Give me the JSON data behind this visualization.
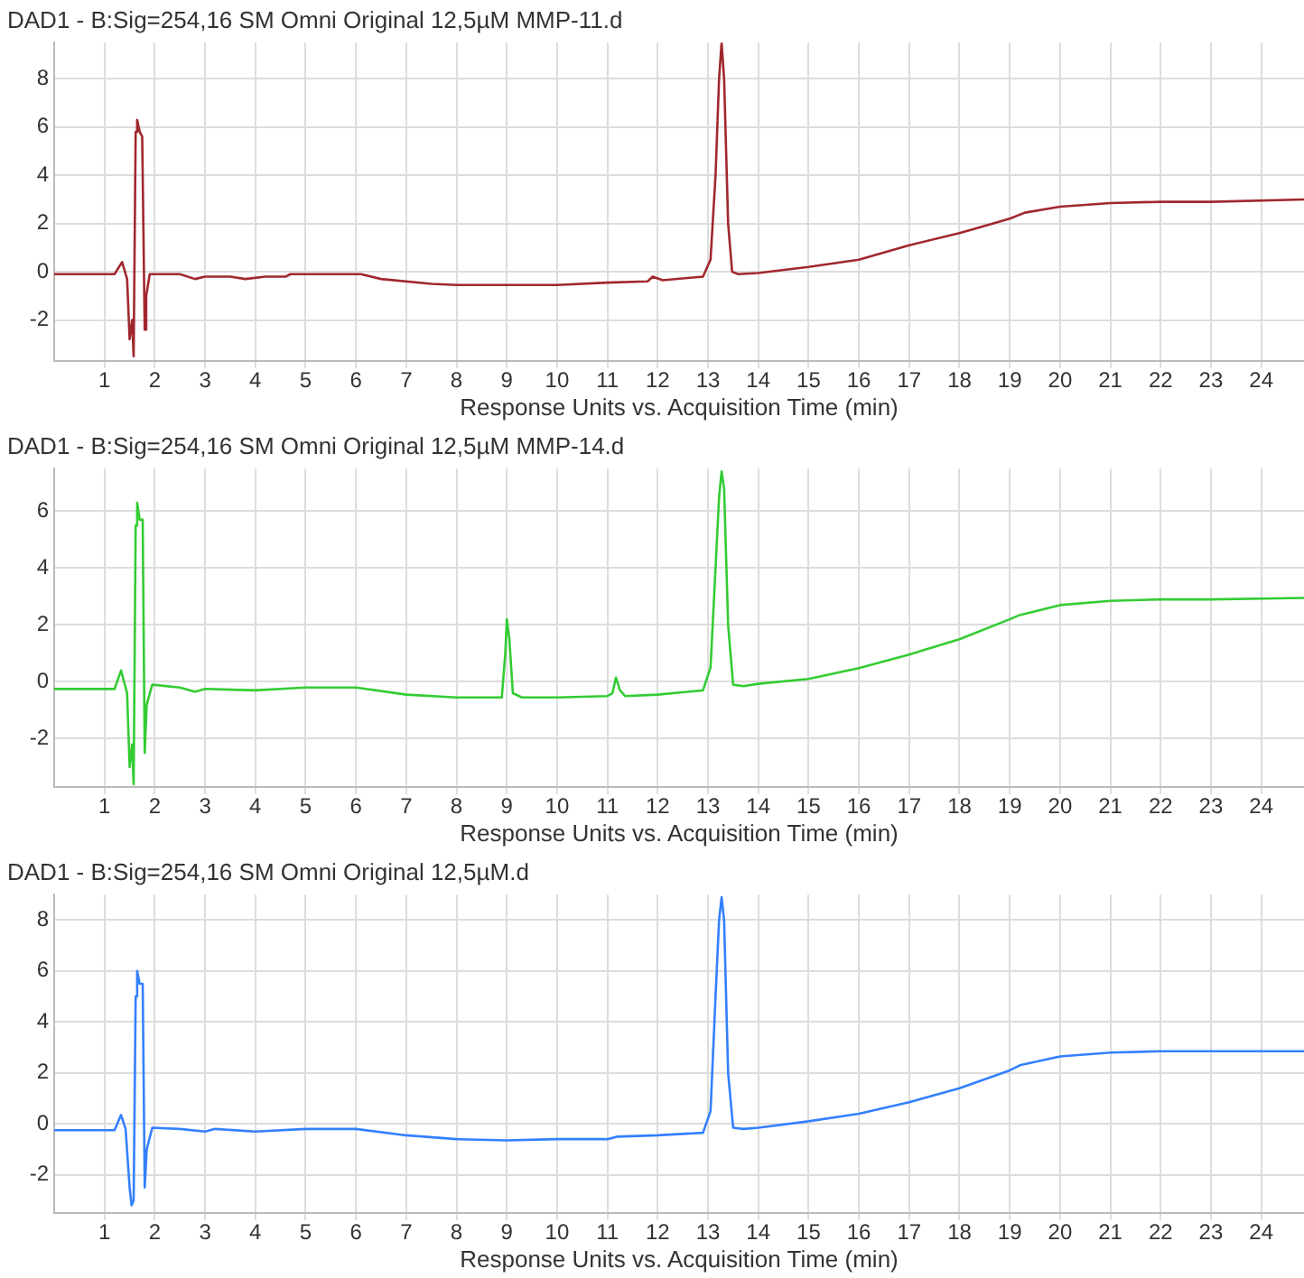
{
  "chart_data": [
    {
      "type": "line",
      "title": "DAD1 - B:Sig=254,16 SM Omni Original 12,5µM MMP-11.d",
      "xlabel": "Response Units vs. Acquisition Time (min)",
      "xlim": [
        0,
        24.85
      ],
      "xticks": [
        1,
        2,
        3,
        4,
        5,
        6,
        7,
        8,
        9,
        10,
        11,
        12,
        13,
        14,
        15,
        16,
        17,
        18,
        19,
        20,
        21,
        22,
        23,
        24
      ],
      "ylim": [
        -3.7,
        9.5
      ],
      "yticks": [
        -2,
        0,
        2,
        4,
        6,
        8
      ],
      "grid": true,
      "series": [
        {
          "color": "#a0282d",
          "x": [
            0,
            1.2,
            1.35,
            1.45,
            1.5,
            1.55,
            1.58,
            1.62,
            1.65,
            1.7,
            1.75,
            1.8,
            1.83,
            1.9,
            2.5,
            2.8,
            3.0,
            3.5,
            3.8,
            4.2,
            4.6,
            4.7,
            6.1,
            6.5,
            7.5,
            8,
            9.5,
            10,
            11,
            11.8,
            11.9,
            12.1,
            12.9,
            13.05,
            13.15,
            13.22,
            13.27,
            13.32,
            13.4,
            13.48,
            13.6,
            14,
            15,
            16,
            17,
            18,
            19,
            19.3,
            20,
            21,
            22,
            23,
            24.85
          ],
          "values": [
            -0.1,
            -0.1,
            0.4,
            -0.3,
            -2.8,
            -2.0,
            -3.5,
            5.8,
            6.3,
            5.8,
            5.6,
            -2.4,
            -1.0,
            -0.1,
            -0.1,
            -0.3,
            -0.2,
            -0.2,
            -0.3,
            -0.2,
            -0.2,
            -0.1,
            -0.1,
            -0.3,
            -0.5,
            -0.55,
            -0.55,
            -0.55,
            -0.45,
            -0.4,
            -0.2,
            -0.35,
            -0.2,
            0.5,
            4,
            8,
            9.5,
            8,
            2,
            0,
            -0.1,
            -0.05,
            0.2,
            0.5,
            1.1,
            1.6,
            2.2,
            2.45,
            2.7,
            2.85,
            2.9,
            2.9,
            3.0
          ]
        }
      ]
    },
    {
      "type": "line",
      "title": "DAD1 - B:Sig=254,16 SM Omni Original 12,5µM MMP-14.d",
      "xlabel": "Response Units vs. Acquisition Time (min)",
      "xlim": [
        0,
        24.85
      ],
      "xticks": [
        1,
        2,
        3,
        4,
        5,
        6,
        7,
        8,
        9,
        10,
        11,
        12,
        13,
        14,
        15,
        16,
        17,
        18,
        19,
        20,
        21,
        22,
        23,
        24
      ],
      "ylim": [
        -3.7,
        7.5
      ],
      "yticks": [
        -2,
        0,
        2,
        4,
        6
      ],
      "grid": true,
      "series": [
        {
          "color": "#33cc33",
          "x": [
            0,
            1.2,
            1.33,
            1.45,
            1.5,
            1.55,
            1.58,
            1.62,
            1.65,
            1.7,
            1.76,
            1.8,
            1.84,
            1.95,
            2.5,
            2.8,
            3.0,
            4,
            5,
            6,
            7,
            8,
            8.9,
            8.97,
            9.0,
            9.05,
            9.12,
            9.3,
            10,
            11,
            11.1,
            11.17,
            11.25,
            11.35,
            12,
            12.9,
            13.05,
            13.15,
            13.22,
            13.27,
            13.32,
            13.4,
            13.5,
            13.7,
            14,
            15,
            16,
            17,
            18,
            19,
            19.2,
            20,
            21,
            22,
            23,
            24.85
          ],
          "values": [
            -0.25,
            -0.25,
            0.4,
            -0.4,
            -3.0,
            -2.2,
            -3.6,
            5.5,
            6.3,
            5.7,
            5.7,
            -2.5,
            -0.8,
            -0.1,
            -0.2,
            -0.35,
            -0.25,
            -0.3,
            -0.2,
            -0.2,
            -0.45,
            -0.55,
            -0.55,
            1.0,
            2.2,
            1.5,
            -0.4,
            -0.55,
            -0.55,
            -0.5,
            -0.4,
            0.15,
            -0.3,
            -0.5,
            -0.45,
            -0.3,
            0.5,
            4,
            6.5,
            7.4,
            6.8,
            2,
            -0.1,
            -0.15,
            -0.07,
            0.1,
            0.48,
            0.96,
            1.5,
            2.2,
            2.35,
            2.7,
            2.85,
            2.9,
            2.9,
            2.95
          ]
        }
      ]
    },
    {
      "type": "line",
      "title": "DAD1 - B:Sig=254,16 SM Omni Original 12,5µM.d",
      "xlabel": "Response Units vs. Acquisition Time (min)",
      "xlim": [
        0,
        24.85
      ],
      "xticks": [
        1,
        2,
        3,
        4,
        5,
        6,
        7,
        8,
        9,
        10,
        11,
        12,
        13,
        14,
        15,
        16,
        17,
        18,
        19,
        20,
        21,
        22,
        23,
        24
      ],
      "ylim": [
        -3.5,
        9
      ],
      "yticks": [
        -2,
        0,
        2,
        4,
        6,
        8
      ],
      "grid": true,
      "series": [
        {
          "color": "#3380ff",
          "x": [
            0,
            1.2,
            1.33,
            1.42,
            1.5,
            1.54,
            1.58,
            1.62,
            1.65,
            1.7,
            1.76,
            1.8,
            1.84,
            1.95,
            2.5,
            3,
            3.2,
            4,
            5,
            6,
            7,
            8,
            9,
            10,
            11,
            11.2,
            12,
            12.9,
            13.05,
            13.15,
            13.22,
            13.27,
            13.32,
            13.4,
            13.5,
            13.7,
            14,
            15,
            16,
            17,
            18,
            19,
            19.2,
            20,
            21,
            22,
            23,
            24.85
          ],
          "values": [
            -0.25,
            -0.25,
            0.35,
            -0.2,
            -2.5,
            -3.2,
            -3.0,
            5.0,
            6.0,
            5.5,
            5.5,
            -2.5,
            -1.0,
            -0.15,
            -0.2,
            -0.3,
            -0.2,
            -0.3,
            -0.2,
            -0.2,
            -0.45,
            -0.6,
            -0.65,
            -0.6,
            -0.6,
            -0.5,
            -0.45,
            -0.35,
            0.5,
            5,
            8,
            8.9,
            8,
            2,
            -0.15,
            -0.2,
            -0.15,
            0.1,
            0.4,
            0.85,
            1.4,
            2.1,
            2.3,
            2.65,
            2.8,
            2.85,
            2.85,
            2.85
          ]
        }
      ]
    }
  ]
}
